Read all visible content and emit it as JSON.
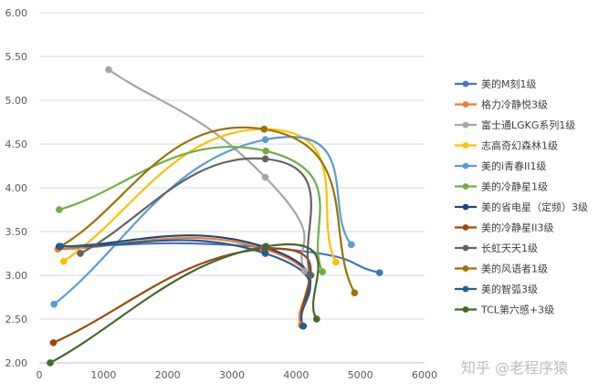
{
  "chart_data": {
    "type": "scatter",
    "subtype": "smooth-line-with-markers",
    "xlim": [
      0,
      6000
    ],
    "ylim": [
      2.0,
      6.0
    ],
    "x_ticks": [
      "0",
      "1000",
      "2000",
      "3000",
      "4000",
      "5000",
      "6000"
    ],
    "y_ticks": [
      "2.00",
      "2.50",
      "3.00",
      "3.50",
      "4.00",
      "4.50",
      "5.00",
      "5.50",
      "6.00"
    ],
    "grid": "horizontal",
    "legend_position": "right",
    "series": [
      {
        "name": "美的M刻1级",
        "color": "#4472C4",
        "points": [
          [
            330,
            3.33
          ],
          [
            3500,
            3.32
          ],
          [
            5300,
            3.03
          ]
        ]
      },
      {
        "name": "格力冷静悦3级",
        "color": "#ED7D31",
        "points": [
          [
            290,
            3.3
          ],
          [
            3500,
            3.3
          ],
          [
            4080,
            2.43
          ]
        ]
      },
      {
        "name": "富士通LGKG系列1级",
        "color": "#A5A5A5",
        "points": [
          [
            1080,
            5.35
          ],
          [
            3520,
            4.12
          ],
          [
            4130,
            3.05
          ]
        ]
      },
      {
        "name": "志高奇幻森林1级",
        "color": "#FFC000",
        "points": [
          [
            380,
            3.16
          ],
          [
            3510,
            4.67
          ],
          [
            4620,
            3.15
          ]
        ]
      },
      {
        "name": "美的i青春II1级",
        "color": "#5B9BD5",
        "points": [
          [
            230,
            2.67
          ],
          [
            3520,
            4.55
          ],
          [
            4860,
            3.35
          ]
        ]
      },
      {
        "name": "美的冷静星1级",
        "color": "#70AD47",
        "points": [
          [
            310,
            3.75
          ],
          [
            3530,
            4.42
          ],
          [
            4410,
            3.04
          ]
        ]
      },
      {
        "name": "美的省电星（定频）3级",
        "color": "#264478",
        "points": [
          [
            310,
            3.33
          ],
          [
            3520,
            3.32
          ],
          [
            4110,
            2.42
          ]
        ]
      },
      {
        "name": "美的冷静星II3级",
        "color": "#9E480E",
        "points": [
          [
            220,
            2.23
          ],
          [
            3510,
            3.3
          ],
          [
            4110,
            2.42
          ]
        ]
      },
      {
        "name": "长虹天天1级",
        "color": "#636363",
        "points": [
          [
            640,
            3.25
          ],
          [
            3520,
            4.33
          ],
          [
            4230,
            3.0
          ]
        ]
      },
      {
        "name": "美的风语者1级",
        "color": "#997300",
        "points": [
          [
            330,
            3.33
          ],
          [
            3500,
            4.67
          ],
          [
            4910,
            2.8
          ]
        ]
      },
      {
        "name": "美的智弧3级",
        "color": "#255E91",
        "points": [
          [
            330,
            3.33
          ],
          [
            3520,
            3.25
          ],
          [
            4110,
            2.42
          ]
        ]
      },
      {
        "name": "TCL第六感+3级",
        "color": "#43682B",
        "points": [
          [
            170,
            2.0
          ],
          [
            3530,
            3.33
          ],
          [
            4320,
            2.5
          ]
        ]
      }
    ]
  },
  "watermark": "知乎 @老程序猿"
}
